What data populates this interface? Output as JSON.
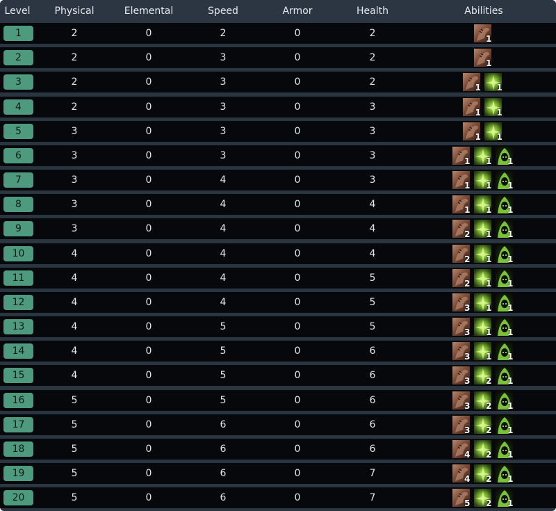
{
  "headers": [
    "Level",
    "Physical",
    "Elemental",
    "Speed",
    "Armor",
    "Health",
    "Abilities"
  ],
  "ability_icons": {
    "physical": "beast-claw-icon",
    "elemental": "green-energy-icon",
    "poison": "hooded-wraith-icon"
  },
  "colors": {
    "level_badge": "#4e9a7e",
    "row_bg": "#06080b",
    "grid": "#2a3540"
  },
  "rows": [
    {
      "level": "1",
      "physical": "2",
      "elemental": "0",
      "speed": "2",
      "armor": "0",
      "health": "2",
      "abilities": [
        {
          "icon": "physical",
          "count": "1"
        }
      ]
    },
    {
      "level": "2",
      "physical": "2",
      "elemental": "0",
      "speed": "3",
      "armor": "0",
      "health": "2",
      "abilities": [
        {
          "icon": "physical",
          "count": "1"
        }
      ]
    },
    {
      "level": "3",
      "physical": "2",
      "elemental": "0",
      "speed": "3",
      "armor": "0",
      "health": "2",
      "abilities": [
        {
          "icon": "physical",
          "count": "1"
        },
        {
          "icon": "elemental",
          "count": "1"
        }
      ]
    },
    {
      "level": "4",
      "physical": "2",
      "elemental": "0",
      "speed": "3",
      "armor": "0",
      "health": "3",
      "abilities": [
        {
          "icon": "physical",
          "count": "1"
        },
        {
          "icon": "elemental",
          "count": "1"
        }
      ]
    },
    {
      "level": "5",
      "physical": "3",
      "elemental": "0",
      "speed": "3",
      "armor": "0",
      "health": "3",
      "abilities": [
        {
          "icon": "physical",
          "count": "1"
        },
        {
          "icon": "elemental",
          "count": "1"
        }
      ]
    },
    {
      "level": "6",
      "physical": "3",
      "elemental": "0",
      "speed": "3",
      "armor": "0",
      "health": "3",
      "abilities": [
        {
          "icon": "physical",
          "count": "1"
        },
        {
          "icon": "elemental",
          "count": "1"
        },
        {
          "icon": "poison",
          "count": "1"
        }
      ]
    },
    {
      "level": "7",
      "physical": "3",
      "elemental": "0",
      "speed": "4",
      "armor": "0",
      "health": "3",
      "abilities": [
        {
          "icon": "physical",
          "count": "1"
        },
        {
          "icon": "elemental",
          "count": "1"
        },
        {
          "icon": "poison",
          "count": "1"
        }
      ]
    },
    {
      "level": "8",
      "physical": "3",
      "elemental": "0",
      "speed": "4",
      "armor": "0",
      "health": "4",
      "abilities": [
        {
          "icon": "physical",
          "count": "1"
        },
        {
          "icon": "elemental",
          "count": "1"
        },
        {
          "icon": "poison",
          "count": "1"
        }
      ]
    },
    {
      "level": "9",
      "physical": "3",
      "elemental": "0",
      "speed": "4",
      "armor": "0",
      "health": "4",
      "abilities": [
        {
          "icon": "physical",
          "count": "2"
        },
        {
          "icon": "elemental",
          "count": "1"
        },
        {
          "icon": "poison",
          "count": "1"
        }
      ]
    },
    {
      "level": "10",
      "physical": "4",
      "elemental": "0",
      "speed": "4",
      "armor": "0",
      "health": "4",
      "abilities": [
        {
          "icon": "physical",
          "count": "2"
        },
        {
          "icon": "elemental",
          "count": "1"
        },
        {
          "icon": "poison",
          "count": "1"
        }
      ]
    },
    {
      "level": "11",
      "physical": "4",
      "elemental": "0",
      "speed": "4",
      "armor": "0",
      "health": "5",
      "abilities": [
        {
          "icon": "physical",
          "count": "2"
        },
        {
          "icon": "elemental",
          "count": "1"
        },
        {
          "icon": "poison",
          "count": "1"
        }
      ]
    },
    {
      "level": "12",
      "physical": "4",
      "elemental": "0",
      "speed": "4",
      "armor": "0",
      "health": "5",
      "abilities": [
        {
          "icon": "physical",
          "count": "3"
        },
        {
          "icon": "elemental",
          "count": "1"
        },
        {
          "icon": "poison",
          "count": "1"
        }
      ]
    },
    {
      "level": "13",
      "physical": "4",
      "elemental": "0",
      "speed": "5",
      "armor": "0",
      "health": "5",
      "abilities": [
        {
          "icon": "physical",
          "count": "3"
        },
        {
          "icon": "elemental",
          "count": "1"
        },
        {
          "icon": "poison",
          "count": "1"
        }
      ]
    },
    {
      "level": "14",
      "physical": "4",
      "elemental": "0",
      "speed": "5",
      "armor": "0",
      "health": "6",
      "abilities": [
        {
          "icon": "physical",
          "count": "3"
        },
        {
          "icon": "elemental",
          "count": "1"
        },
        {
          "icon": "poison",
          "count": "1"
        }
      ]
    },
    {
      "level": "15",
      "physical": "4",
      "elemental": "0",
      "speed": "5",
      "armor": "0",
      "health": "6",
      "abilities": [
        {
          "icon": "physical",
          "count": "3"
        },
        {
          "icon": "elemental",
          "count": "2"
        },
        {
          "icon": "poison",
          "count": "1"
        }
      ]
    },
    {
      "level": "16",
      "physical": "5",
      "elemental": "0",
      "speed": "5",
      "armor": "0",
      "health": "6",
      "abilities": [
        {
          "icon": "physical",
          "count": "3"
        },
        {
          "icon": "elemental",
          "count": "2"
        },
        {
          "icon": "poison",
          "count": "1"
        }
      ]
    },
    {
      "level": "17",
      "physical": "5",
      "elemental": "0",
      "speed": "6",
      "armor": "0",
      "health": "6",
      "abilities": [
        {
          "icon": "physical",
          "count": "3"
        },
        {
          "icon": "elemental",
          "count": "2"
        },
        {
          "icon": "poison",
          "count": "1"
        }
      ]
    },
    {
      "level": "18",
      "physical": "5",
      "elemental": "0",
      "speed": "6",
      "armor": "0",
      "health": "6",
      "abilities": [
        {
          "icon": "physical",
          "count": "4"
        },
        {
          "icon": "elemental",
          "count": "2"
        },
        {
          "icon": "poison",
          "count": "1"
        }
      ]
    },
    {
      "level": "19",
      "physical": "5",
      "elemental": "0",
      "speed": "6",
      "armor": "0",
      "health": "7",
      "abilities": [
        {
          "icon": "physical",
          "count": "4"
        },
        {
          "icon": "elemental",
          "count": "2"
        },
        {
          "icon": "poison",
          "count": "1"
        }
      ]
    },
    {
      "level": "20",
      "physical": "5",
      "elemental": "0",
      "speed": "6",
      "armor": "0",
      "health": "7",
      "abilities": [
        {
          "icon": "physical",
          "count": "5"
        },
        {
          "icon": "elemental",
          "count": "2"
        },
        {
          "icon": "poison",
          "count": "1"
        }
      ]
    }
  ]
}
